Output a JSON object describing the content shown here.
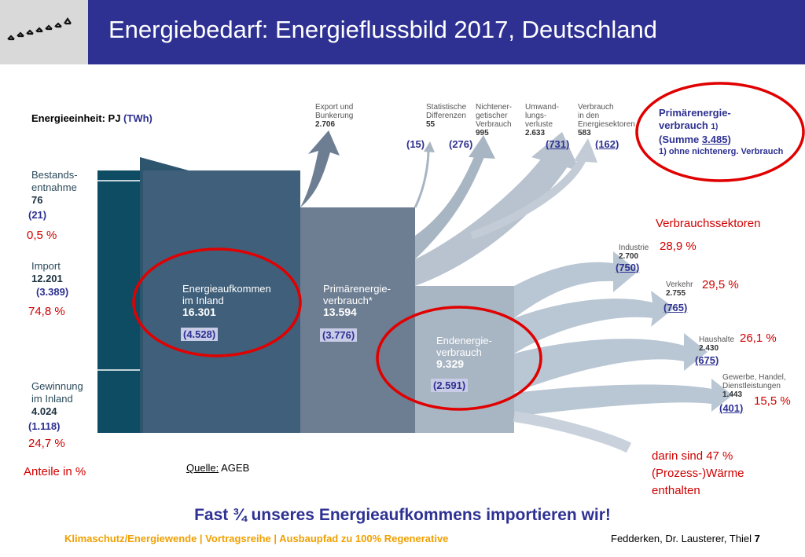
{
  "header": {
    "title": "Energiebedarf: Energieflussbild 2017, Deutschland"
  },
  "unit": {
    "label": "Energieeinheit: PJ",
    "twh": "(TWh)"
  },
  "sources": [
    {
      "l1": "Bestands-",
      "l2": "entnahme",
      "value": "76",
      "twh": "(21)",
      "pct": "0,5 %"
    },
    {
      "l1": "Import",
      "l2": "",
      "value": "12.201",
      "twh": "(3.389)",
      "pct": "74,8 %"
    },
    {
      "l1": "Gewinnung",
      "l2": "im Inland",
      "value": "4.024",
      "twh": "(1.118)",
      "pct": "24,7 %"
    }
  ],
  "shares_label": "Anteile in %",
  "boxes": {
    "aufkommen": {
      "l1": "Energieaufkommen",
      "l2": "im Inland",
      "value": "16.301",
      "twh": "(4.528)"
    },
    "primaer": {
      "l1": "Primärenergie-",
      "l2": "verbrauch*",
      "value": "13.594",
      "twh": "(3.776)"
    },
    "end": {
      "l1": "Endenergie-",
      "l2": "verbrauch",
      "value": "9.329",
      "twh": "(2.591)"
    }
  },
  "top_flows": [
    {
      "l1": "Export und",
      "l2": "Bunkerung",
      "l3": "",
      "value": "2.706",
      "twh": ""
    },
    {
      "l1": "Statistische",
      "l2": "Differenzen",
      "l3": "",
      "value": "55",
      "twh": "(15)"
    },
    {
      "l1": "Nichtener-",
      "l2": "getischer",
      "l3": "Verbrauch",
      "value": "995",
      "twh": "(276)"
    },
    {
      "l1": "Umwand-",
      "l2": "lungs-",
      "l3": "verluste",
      "value": "2.633",
      "twh": "(731)"
    },
    {
      "l1": "Verbrauch",
      "l2": "in den",
      "l3": "Energiesektoren",
      "value": "583",
      "twh": "(162)"
    }
  ],
  "prim_legend": {
    "l1": "Primärenergie-",
    "l2": "verbrauch",
    "note_mark": "1)",
    "l3_pre": "(Summe ",
    "l3_val": "3.485",
    "l3_post": ")",
    "note": "1) ohne nichtenerg. Verbrauch"
  },
  "sectors_title": "Verbrauchssektoren",
  "sectors": [
    {
      "l1": "Industrie",
      "l2": "",
      "value": "2.700",
      "twh": "(750)",
      "pct": "28,9 %"
    },
    {
      "l1": "Verkehr",
      "l2": "",
      "value": "2.755",
      "twh": "(765)",
      "pct": "29,5 %"
    },
    {
      "l1": "Haushalte",
      "l2": "",
      "value": "2.430",
      "twh": "(675)",
      "pct": "26,1 %"
    },
    {
      "l1": "Gewerbe, Handel,",
      "l2": "Dienstleistungen",
      "value": "1.443",
      "twh": "(401)",
      "pct": "15,5 %"
    }
  ],
  "heat_note": {
    "l1": "darin sind 47 %",
    "l2": "(Prozess-)Wärme",
    "l3": "enthalten"
  },
  "source": {
    "label": "Quelle:",
    "value": "AGEB"
  },
  "headline": "Fast ¾ unseres Energieaufkommens importieren wir!",
  "footer": {
    "left": "Klimaschutz/Energiewende | Vortragsreihe | Ausbaupfad zu 100% Regenerative",
    "right_text": "Fedderken, Dr. Lausterer, Thiel",
    "page": "7"
  },
  "colors": {
    "title_bar": "#2e3192",
    "source_bar": "#0e4c64",
    "aufkommen_box": "#3f5f7a",
    "primaer_box": "#6d7e93",
    "end_box": "#a8b5c3",
    "highlight_circle": "#e00000",
    "footer_text": "#f0a000"
  }
}
